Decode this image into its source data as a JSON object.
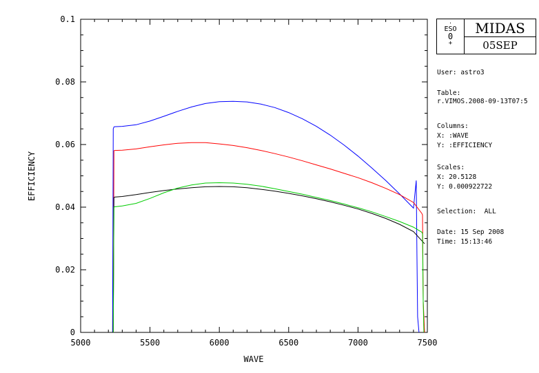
{
  "chart_data": {
    "type": "line",
    "xlabel": "WAVE",
    "ylabel": "EFFICIENCY",
    "xlim": [
      5000,
      7500
    ],
    "ylim": [
      0,
      0.1
    ],
    "xticks": [
      5000,
      5500,
      6000,
      6500,
      7000,
      7500
    ],
    "yticks": [
      0,
      0.02,
      0.04,
      0.06,
      0.08,
      0.1
    ],
    "ytick_labels": [
      "0",
      "0.02",
      "0.04",
      "0.06",
      "0.08",
      "0.1"
    ],
    "grid": false,
    "series": [
      {
        "color": "#0000ff",
        "x": [
          5230,
          5235,
          5240,
          5245,
          5300,
          5400,
          5500,
          5600,
          5700,
          5800,
          5900,
          6000,
          6100,
          6200,
          6300,
          6400,
          6500,
          6600,
          6700,
          6800,
          6900,
          7000,
          7100,
          7200,
          7300,
          7400,
          7420,
          7425,
          7430,
          7440
        ],
        "y": [
          0,
          0.065,
          0.0656,
          0.0657,
          0.0658,
          0.0663,
          0.0675,
          0.069,
          0.0706,
          0.072,
          0.0731,
          0.0737,
          0.0738,
          0.0736,
          0.0729,
          0.0718,
          0.0702,
          0.0682,
          0.0658,
          0.063,
          0.0598,
          0.0563,
          0.0525,
          0.0485,
          0.0442,
          0.0397,
          0.0485,
          0.025,
          0.005,
          0
        ]
      },
      {
        "color": "#ff0000",
        "x": [
          5235,
          5240,
          5245,
          5300,
          5400,
          5500,
          5600,
          5700,
          5800,
          5900,
          6000,
          6100,
          6200,
          6300,
          6400,
          6500,
          6600,
          6700,
          6800,
          6900,
          7000,
          7100,
          7200,
          7300,
          7400,
          7460,
          7465,
          7470,
          7480
        ],
        "y": [
          0,
          0.058,
          0.0581,
          0.0582,
          0.0586,
          0.0593,
          0.0599,
          0.0604,
          0.0606,
          0.0606,
          0.0602,
          0.0597,
          0.059,
          0.0581,
          0.0571,
          0.056,
          0.0548,
          0.0535,
          0.0522,
          0.0508,
          0.0494,
          0.0478,
          0.046,
          0.044,
          0.0415,
          0.038,
          0.0375,
          0.01,
          0
        ]
      },
      {
        "color": "#000000",
        "x": [
          5225,
          5235,
          5240,
          5245,
          5300,
          5400,
          5500,
          5600,
          5700,
          5800,
          5900,
          6000,
          6100,
          6200,
          6300,
          6400,
          6500,
          6600,
          6700,
          6800,
          6900,
          7000,
          7100,
          7200,
          7300,
          7400,
          7480
        ],
        "y": [
          0,
          0,
          0.043,
          0.0432,
          0.0434,
          0.044,
          0.0447,
          0.0453,
          0.0458,
          0.0462,
          0.0465,
          0.0466,
          0.0465,
          0.0462,
          0.0457,
          0.0451,
          0.0444,
          0.0436,
          0.0427,
          0.0417,
          0.0406,
          0.0394,
          0.038,
          0.0364,
          0.0345,
          0.0322,
          0.0283
        ]
      },
      {
        "color": "#00cc00",
        "x": [
          5235,
          5240,
          5245,
          5300,
          5400,
          5500,
          5600,
          5700,
          5800,
          5900,
          6000,
          6100,
          6200,
          6300,
          6400,
          6500,
          6600,
          6700,
          6800,
          6900,
          7000,
          7100,
          7200,
          7300,
          7400,
          7460,
          7465,
          7470,
          7475
        ],
        "y": [
          0,
          0.04,
          0.0401,
          0.0404,
          0.0412,
          0.0428,
          0.0446,
          0.0461,
          0.0471,
          0.0477,
          0.0478,
          0.0477,
          0.0473,
          0.0467,
          0.0459,
          0.045,
          0.0441,
          0.0431,
          0.0421,
          0.041,
          0.0398,
          0.0385,
          0.037,
          0.0354,
          0.0336,
          0.032,
          0.0315,
          0.01,
          0
        ]
      }
    ]
  },
  "logo": {
    "eso_text": "ESO",
    "title": "MIDAS",
    "date_tag": "05SEP"
  },
  "info": {
    "user": "User: astro3",
    "table_label": "Table:",
    "table_value": "r.VIMOS.2008-09-13T07:5",
    "columns_label": "Columns:",
    "columns_x": "X: :WAVE",
    "columns_y": "Y: :EFFICIENCY",
    "scales_label": "Scales:",
    "scales_x": "X: 20.5128",
    "scales_y": "Y: 0.000922722",
    "selection": "Selection:  ALL",
    "date": "Date: 15 Sep 2008",
    "time": "Time: 15:13:46"
  }
}
